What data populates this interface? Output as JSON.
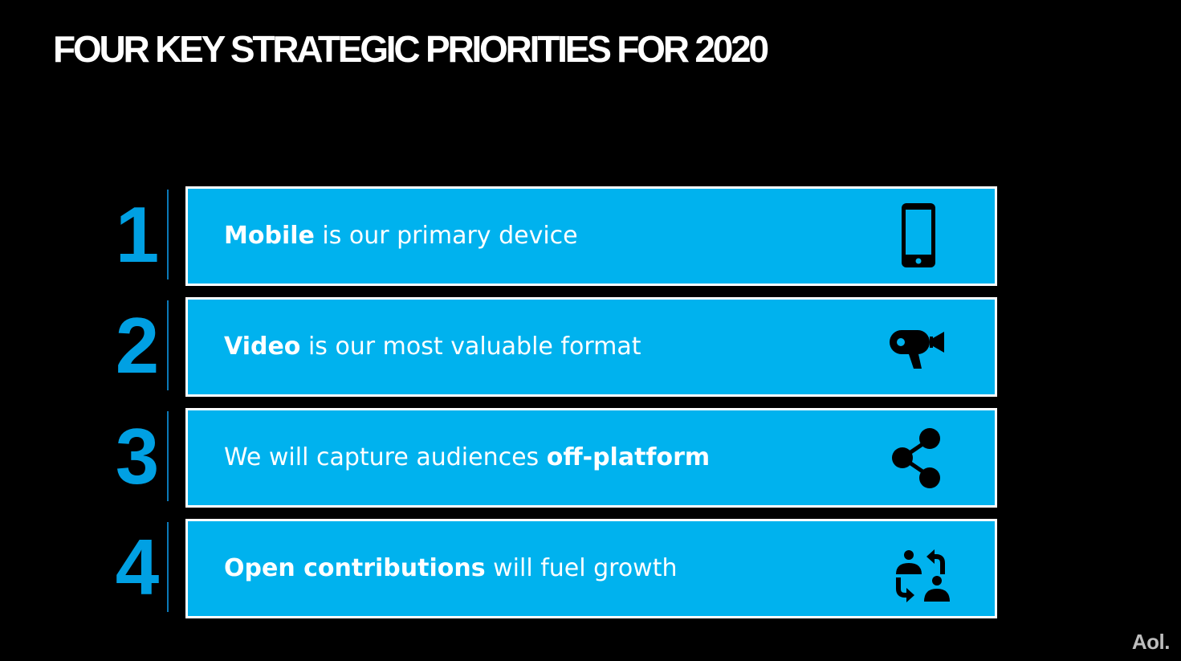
{
  "slide": {
    "title": "FOUR KEY STRATEGIC PRIORITIES FOR 2020",
    "logo": "Aol."
  },
  "priorities": [
    {
      "number": "1",
      "bold_first": true,
      "bold": "Mobile",
      "rest": " is our primary device",
      "icon": "smartphone-icon"
    },
    {
      "number": "2",
      "bold_first": true,
      "bold": "Video",
      "rest": " is our most valuable format",
      "icon": "video-camera-icon"
    },
    {
      "number": "3",
      "bold_first": false,
      "bold": "off-platform",
      "rest": "We will capture audiences ",
      "icon": "share-icon"
    },
    {
      "number": "4",
      "bold_first": true,
      "bold": "Open contributions",
      "rest": " will fuel growth",
      "icon": "user-exchange-icon"
    }
  ],
  "colors": {
    "background": "#000000",
    "accent_blue": "#00a0e3",
    "box_fill": "#00b2ee",
    "box_border": "#ffffff",
    "icon": "#000000"
  }
}
